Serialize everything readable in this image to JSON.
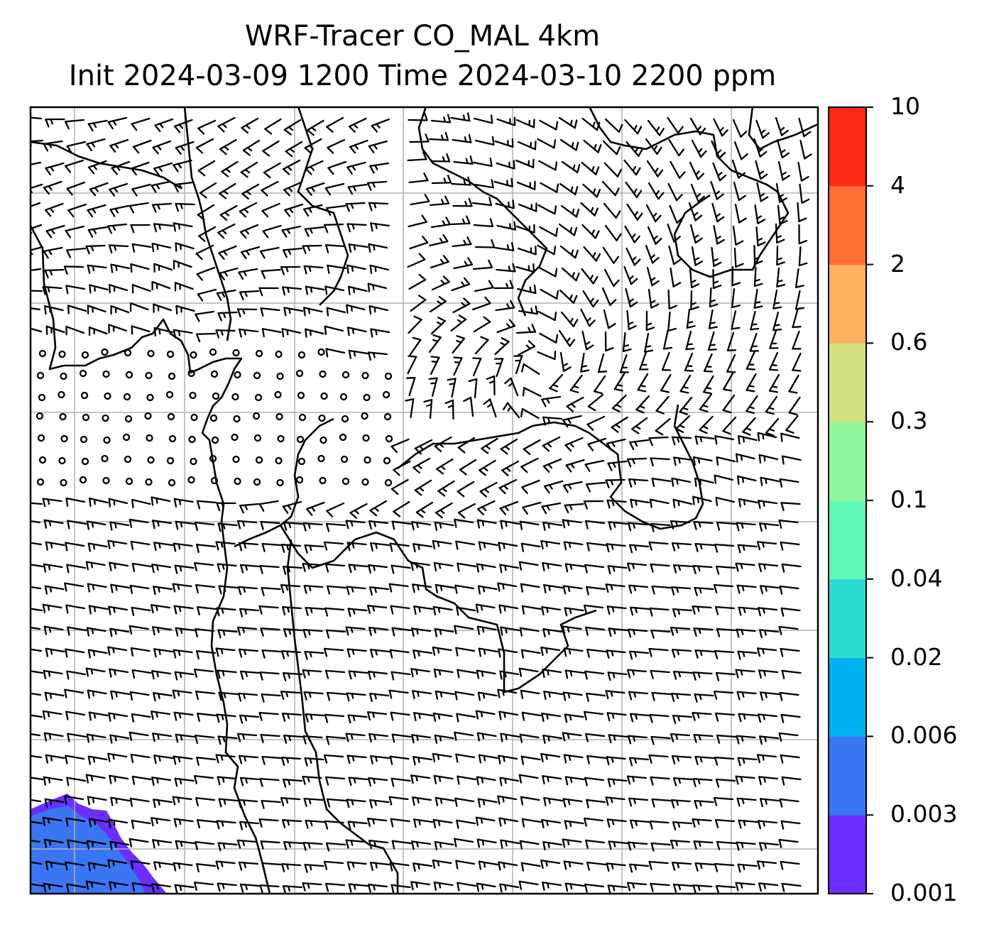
{
  "title": {
    "line1": "WRF-Tracer CO_MAL 4km",
    "line2": "Init 2024-03-09 1200 Time 2024-03-10 2200 ppm"
  },
  "colorbar": {
    "ticks": [
      "0.001",
      "0.003",
      "0.006",
      "0.02",
      "0.04",
      "0.1",
      "0.3",
      "0.6",
      "2",
      "4",
      "10"
    ],
    "colors": [
      "#6b2eff",
      "#3a76f4",
      "#00b3ef",
      "#2ddcd2",
      "#5ef8b9",
      "#8ef69a",
      "#d2e07f",
      "#ffb060",
      "#ff7034",
      "#ff2a14"
    ]
  },
  "map": {
    "grid_color": "#b0b0b0",
    "tracer_colors": [
      "#6b2eff",
      "#3a76f4"
    ]
  }
}
